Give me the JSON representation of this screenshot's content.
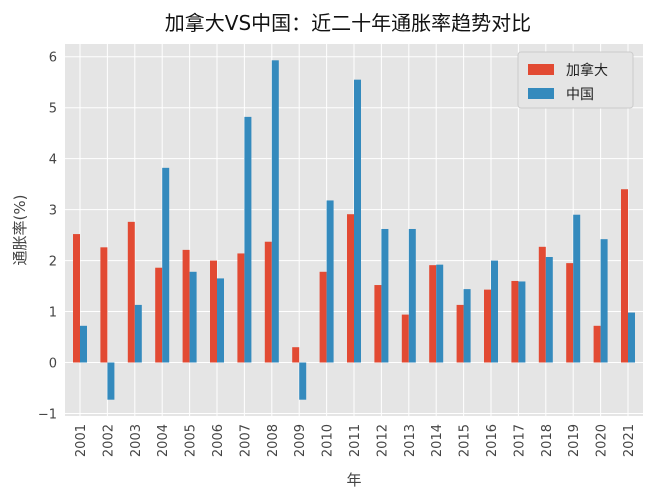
{
  "chart_data": {
    "type": "bar",
    "title": "加拿大VS中国：近二十年通胀率趋势对比",
    "xlabel": "年",
    "ylabel": "通胀率(%)",
    "ylim": [
      -1.05,
      6.25
    ],
    "yticks": [
      "−1",
      "0",
      "1",
      "2",
      "3",
      "4",
      "5",
      "6"
    ],
    "grid": true,
    "legend_position": "top-right",
    "categories": [
      "2001",
      "2002",
      "2003",
      "2004",
      "2005",
      "2006",
      "2007",
      "2008",
      "2009",
      "2010",
      "2011",
      "2012",
      "2013",
      "2014",
      "2015",
      "2016",
      "2017",
      "2018",
      "2019",
      "2020",
      "2021"
    ],
    "series": [
      {
        "name": "加拿大",
        "color": "#E24A33",
        "values": [
          2.52,
          2.26,
          2.76,
          1.86,
          2.21,
          2.0,
          2.14,
          2.37,
          0.3,
          1.78,
          2.91,
          1.52,
          0.94,
          1.91,
          1.13,
          1.43,
          1.6,
          2.27,
          1.95,
          0.72,
          3.4
        ]
      },
      {
        "name": "中国",
        "color": "#348ABD",
        "values": [
          0.72,
          -0.73,
          1.13,
          3.82,
          1.78,
          1.65,
          4.82,
          5.93,
          -0.73,
          3.18,
          5.55,
          2.62,
          2.62,
          1.92,
          1.44,
          2.0,
          1.59,
          2.07,
          2.9,
          2.42,
          0.98
        ]
      }
    ]
  }
}
